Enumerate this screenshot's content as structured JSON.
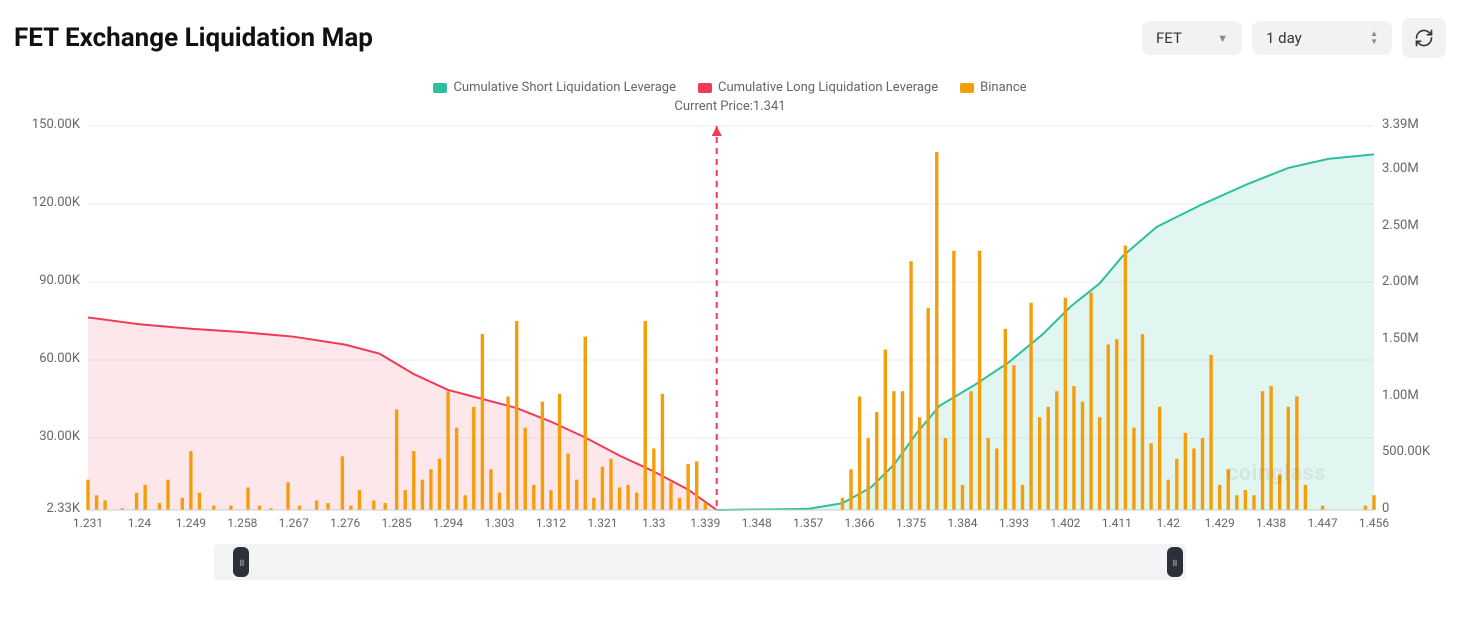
{
  "title": "FET Exchange Liquidation Map",
  "controls": {
    "symbol": "FET",
    "range": "1 day"
  },
  "legend": {
    "short": {
      "label": "Cumulative Short Liquidation Leverage",
      "color": "#2bbf9e"
    },
    "long": {
      "label": "Cumulative Long Liquidation Leverage",
      "color": "#ef3b55"
    },
    "exchange": {
      "label": "Binance",
      "color": "#f59e0b"
    }
  },
  "current_price": {
    "label": "Current Price:",
    "value": "1.341"
  },
  "watermark": "coinglass",
  "chart": {
    "type": "bar+area",
    "background_color": "#ffffff",
    "grid_color": "#eceef1",
    "label_fontsize": 13,
    "x": {
      "min": 1.231,
      "max": 1.456,
      "step": 0.009,
      "tick_labels": [
        "1.231",
        "1.24",
        "1.249",
        "1.258",
        "1.267",
        "1.276",
        "1.285",
        "1.294",
        "1.303",
        "1.312",
        "1.321",
        "1.33",
        "1.339",
        "1.348",
        "1.357",
        "1.366",
        "1.375",
        "1.384",
        "1.393",
        "1.402",
        "1.411",
        "1.42",
        "1.429",
        "1.438",
        "1.447",
        "1.456"
      ]
    },
    "yLeft": {
      "min": 2330,
      "max": 150000,
      "tick_labels": [
        "2.33K",
        "30.00K",
        "60.00K",
        "90.00K",
        "120.00K",
        "150.00K"
      ],
      "tick_values": [
        2330,
        30000,
        60000,
        90000,
        120000,
        150000
      ]
    },
    "yRight": {
      "min": 0,
      "max": 3390000,
      "tick_labels": [
        "0",
        "500.00K",
        "1.00M",
        "1.50M",
        "2.00M",
        "2.50M",
        "3.00M",
        "3.39M"
      ],
      "tick_values": [
        0,
        500000,
        1000000,
        1500000,
        2000000,
        2500000,
        3000000,
        3390000
      ]
    },
    "price_line": {
      "x": 1.341,
      "color": "#ef3b55",
      "dash": "6,5"
    },
    "colors": {
      "bar": "#f59e0b",
      "short_line": "#2bbf9e",
      "short_fill": "rgba(43,191,158,0.14)",
      "long_line": "#ef3b55",
      "long_fill": "rgba(239,59,85,0.12)"
    },
    "bar_width": 3.4,
    "bars": [
      {
        "x": 1.231,
        "v": 14000
      },
      {
        "x": 1.2325,
        "v": 8000
      },
      {
        "x": 1.234,
        "v": 6000
      },
      {
        "x": 1.237,
        "v": 3000
      },
      {
        "x": 1.2395,
        "v": 9000
      },
      {
        "x": 1.241,
        "v": 12000
      },
      {
        "x": 1.2435,
        "v": 5000
      },
      {
        "x": 1.245,
        "v": 14000
      },
      {
        "x": 1.2475,
        "v": 7000
      },
      {
        "x": 1.249,
        "v": 25000
      },
      {
        "x": 1.2505,
        "v": 9000
      },
      {
        "x": 1.253,
        "v": 4000
      },
      {
        "x": 1.256,
        "v": 4000
      },
      {
        "x": 1.259,
        "v": 11000
      },
      {
        "x": 1.261,
        "v": 4000
      },
      {
        "x": 1.263,
        "v": 3000
      },
      {
        "x": 1.266,
        "v": 13000
      },
      {
        "x": 1.268,
        "v": 4000
      },
      {
        "x": 1.271,
        "v": 6000
      },
      {
        "x": 1.273,
        "v": 5000
      },
      {
        "x": 1.2755,
        "v": 23000
      },
      {
        "x": 1.277,
        "v": 4000
      },
      {
        "x": 1.2785,
        "v": 10000
      },
      {
        "x": 1.281,
        "v": 6000
      },
      {
        "x": 1.283,
        "v": 5000
      },
      {
        "x": 1.285,
        "v": 41000
      },
      {
        "x": 1.2865,
        "v": 10000
      },
      {
        "x": 1.288,
        "v": 25000
      },
      {
        "x": 1.2895,
        "v": 14000
      },
      {
        "x": 1.291,
        "v": 18000
      },
      {
        "x": 1.2925,
        "v": 22000
      },
      {
        "x": 1.294,
        "v": 48000
      },
      {
        "x": 1.2955,
        "v": 34000
      },
      {
        "x": 1.297,
        "v": 8000
      },
      {
        "x": 1.2985,
        "v": 42000
      },
      {
        "x": 1.3,
        "v": 70000
      },
      {
        "x": 1.3015,
        "v": 18000
      },
      {
        "x": 1.303,
        "v": 9000
      },
      {
        "x": 1.3045,
        "v": 46000
      },
      {
        "x": 1.306,
        "v": 75000
      },
      {
        "x": 1.3075,
        "v": 34000
      },
      {
        "x": 1.309,
        "v": 12000
      },
      {
        "x": 1.3105,
        "v": 44000
      },
      {
        "x": 1.312,
        "v": 10000
      },
      {
        "x": 1.3135,
        "v": 47000
      },
      {
        "x": 1.315,
        "v": 24000
      },
      {
        "x": 1.3165,
        "v": 14000
      },
      {
        "x": 1.318,
        "v": 69000
      },
      {
        "x": 1.3195,
        "v": 7000
      },
      {
        "x": 1.321,
        "v": 19000
      },
      {
        "x": 1.3225,
        "v": 22000
      },
      {
        "x": 1.324,
        "v": 11000
      },
      {
        "x": 1.3255,
        "v": 12000
      },
      {
        "x": 1.327,
        "v": 9000
      },
      {
        "x": 1.3285,
        "v": 75000
      },
      {
        "x": 1.33,
        "v": 26000
      },
      {
        "x": 1.3315,
        "v": 47000
      },
      {
        "x": 1.333,
        "v": 13000
      },
      {
        "x": 1.3345,
        "v": 7000
      },
      {
        "x": 1.336,
        "v": 20000
      },
      {
        "x": 1.3375,
        "v": 21000
      },
      {
        "x": 1.339,
        "v": 5000
      },
      {
        "x": 1.363,
        "v": 7000
      },
      {
        "x": 1.3645,
        "v": 18000
      },
      {
        "x": 1.366,
        "v": 46000
      },
      {
        "x": 1.3675,
        "v": 30000
      },
      {
        "x": 1.369,
        "v": 40000
      },
      {
        "x": 1.3705,
        "v": 64000
      },
      {
        "x": 1.372,
        "v": 48000
      },
      {
        "x": 1.3735,
        "v": 48000
      },
      {
        "x": 1.375,
        "v": 98000
      },
      {
        "x": 1.3765,
        "v": 38000
      },
      {
        "x": 1.378,
        "v": 80000
      },
      {
        "x": 1.3795,
        "v": 140000
      },
      {
        "x": 1.381,
        "v": 30000
      },
      {
        "x": 1.3825,
        "v": 102000
      },
      {
        "x": 1.384,
        "v": 12000
      },
      {
        "x": 1.3855,
        "v": 48000
      },
      {
        "x": 1.387,
        "v": 102000
      },
      {
        "x": 1.3885,
        "v": 30000
      },
      {
        "x": 1.39,
        "v": 26000
      },
      {
        "x": 1.3915,
        "v": 72000
      },
      {
        "x": 1.393,
        "v": 58000
      },
      {
        "x": 1.3945,
        "v": 12000
      },
      {
        "x": 1.396,
        "v": 82000
      },
      {
        "x": 1.3975,
        "v": 38000
      },
      {
        "x": 1.399,
        "v": 42000
      },
      {
        "x": 1.4005,
        "v": 48000
      },
      {
        "x": 1.402,
        "v": 84000
      },
      {
        "x": 1.4035,
        "v": 50000
      },
      {
        "x": 1.405,
        "v": 44000
      },
      {
        "x": 1.4065,
        "v": 86000
      },
      {
        "x": 1.408,
        "v": 38000
      },
      {
        "x": 1.4095,
        "v": 66000
      },
      {
        "x": 1.411,
        "v": 68000
      },
      {
        "x": 1.4125,
        "v": 104000
      },
      {
        "x": 1.414,
        "v": 34000
      },
      {
        "x": 1.4155,
        "v": 70000
      },
      {
        "x": 1.417,
        "v": 28000
      },
      {
        "x": 1.4185,
        "v": 42000
      },
      {
        "x": 1.42,
        "v": 14000
      },
      {
        "x": 1.4215,
        "v": 22000
      },
      {
        "x": 1.423,
        "v": 32000
      },
      {
        "x": 1.4245,
        "v": 26000
      },
      {
        "x": 1.426,
        "v": 30000
      },
      {
        "x": 1.4275,
        "v": 62000
      },
      {
        "x": 1.429,
        "v": 12000
      },
      {
        "x": 1.4305,
        "v": 18000
      },
      {
        "x": 1.432,
        "v": 8000
      },
      {
        "x": 1.4335,
        "v": 10000
      },
      {
        "x": 1.435,
        "v": 8000
      },
      {
        "x": 1.4365,
        "v": 48000
      },
      {
        "x": 1.438,
        "v": 50000
      },
      {
        "x": 1.4395,
        "v": 16000
      },
      {
        "x": 1.441,
        "v": 42000
      },
      {
        "x": 1.4425,
        "v": 46000
      },
      {
        "x": 1.444,
        "v": 12000
      },
      {
        "x": 1.447,
        "v": 4000
      },
      {
        "x": 1.4545,
        "v": 4000
      },
      {
        "x": 1.456,
        "v": 8000
      }
    ],
    "long_curve": [
      {
        "x": 1.231,
        "v": 1700000
      },
      {
        "x": 1.24,
        "v": 1640000
      },
      {
        "x": 1.249,
        "v": 1600000
      },
      {
        "x": 1.258,
        "v": 1570000
      },
      {
        "x": 1.267,
        "v": 1530000
      },
      {
        "x": 1.276,
        "v": 1460000
      },
      {
        "x": 1.282,
        "v": 1380000
      },
      {
        "x": 1.288,
        "v": 1200000
      },
      {
        "x": 1.294,
        "v": 1060000
      },
      {
        "x": 1.3,
        "v": 980000
      },
      {
        "x": 1.306,
        "v": 900000
      },
      {
        "x": 1.312,
        "v": 780000
      },
      {
        "x": 1.318,
        "v": 640000
      },
      {
        "x": 1.324,
        "v": 480000
      },
      {
        "x": 1.33,
        "v": 340000
      },
      {
        "x": 1.336,
        "v": 180000
      },
      {
        "x": 1.341,
        "v": 0
      }
    ],
    "short_curve": [
      {
        "x": 1.341,
        "v": 0
      },
      {
        "x": 1.357,
        "v": 10000
      },
      {
        "x": 1.363,
        "v": 60000
      },
      {
        "x": 1.368,
        "v": 200000
      },
      {
        "x": 1.372,
        "v": 400000
      },
      {
        "x": 1.376,
        "v": 680000
      },
      {
        "x": 1.38,
        "v": 920000
      },
      {
        "x": 1.386,
        "v": 1100000
      },
      {
        "x": 1.392,
        "v": 1300000
      },
      {
        "x": 1.398,
        "v": 1550000
      },
      {
        "x": 1.403,
        "v": 1800000
      },
      {
        "x": 1.408,
        "v": 2000000
      },
      {
        "x": 1.412,
        "v": 2240000
      },
      {
        "x": 1.418,
        "v": 2500000
      },
      {
        "x": 1.426,
        "v": 2700000
      },
      {
        "x": 1.434,
        "v": 2880000
      },
      {
        "x": 1.441,
        "v": 3020000
      },
      {
        "x": 1.448,
        "v": 3100000
      },
      {
        "x": 1.456,
        "v": 3140000
      }
    ]
  },
  "slider": {
    "left_pct": 2,
    "right_pct": 98
  }
}
